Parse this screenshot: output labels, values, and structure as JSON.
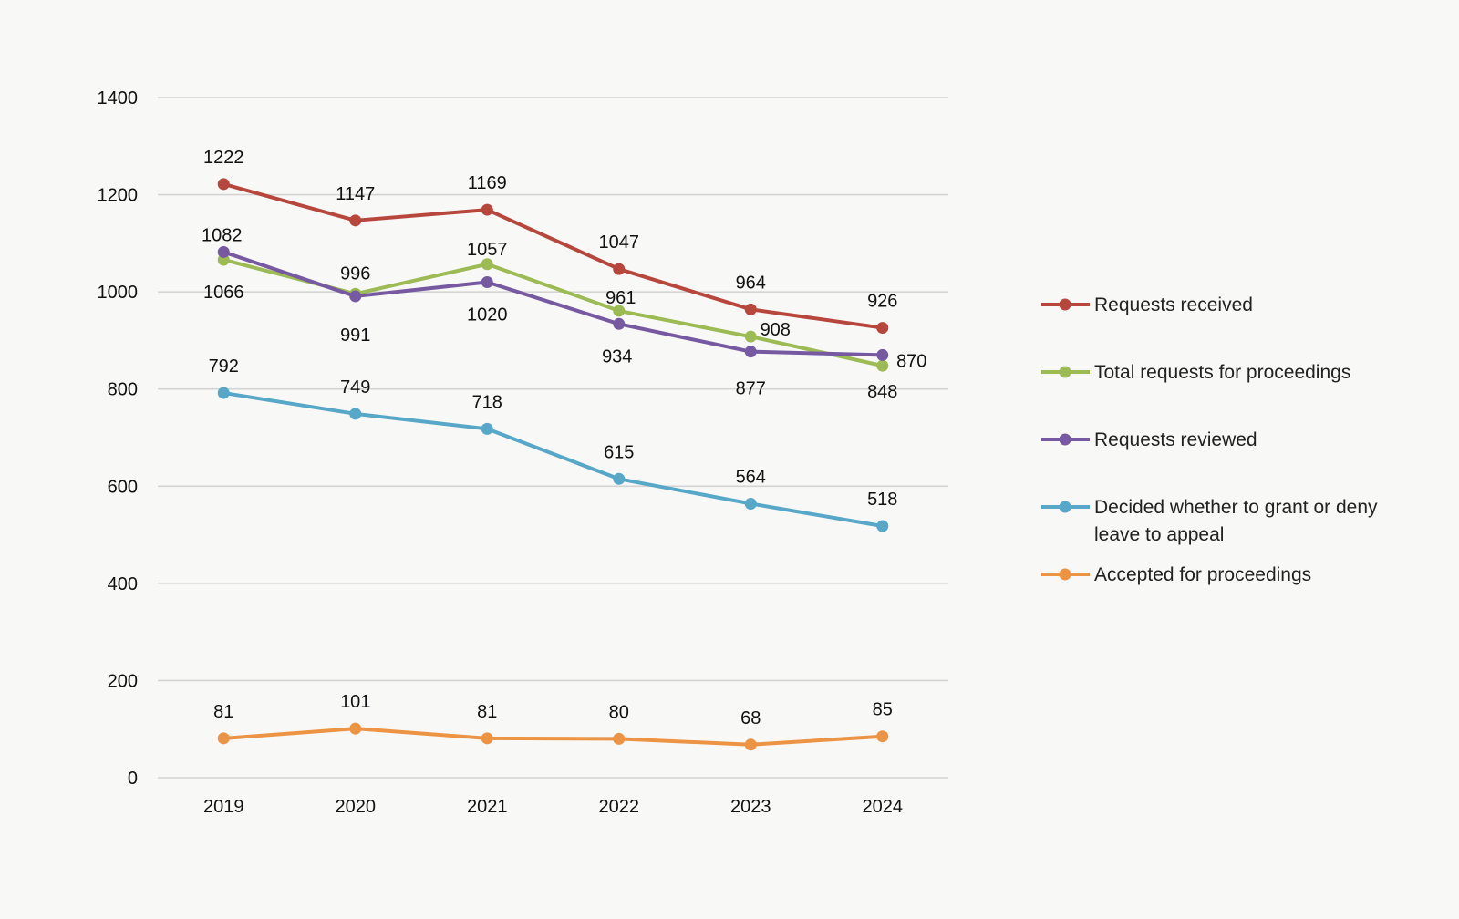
{
  "chart_data": {
    "type": "line",
    "title": "",
    "xlabel": "",
    "ylabel": "",
    "categories": [
      "2019",
      "2020",
      "2021",
      "2022",
      "2023",
      "2024"
    ],
    "ylim": [
      0,
      1400
    ],
    "yticks": [
      0,
      200,
      400,
      600,
      800,
      1000,
      1200,
      1400
    ],
    "grid": true,
    "legend_position": "right",
    "series": [
      {
        "name": "Requests received",
        "color": "#b7473d",
        "values": [
          1222,
          1147,
          1169,
          1047,
          964,
          926
        ]
      },
      {
        "name": "Total requests for proceedings",
        "color": "#9dbb55",
        "values": [
          1066,
          996,
          1057,
          961,
          908,
          848
        ]
      },
      {
        "name": "Requests reviewed",
        "color": "#7659a0",
        "values": [
          1082,
          991,
          1020,
          934,
          877,
          870
        ]
      },
      {
        "name": "Decided whether to grant or deny leave to appeal",
        "legend_lines": [
          "Decided whether to grant or deny",
          "leave to appeal"
        ],
        "color": "#57a7c8",
        "values": [
          792,
          749,
          718,
          615,
          564,
          518
        ]
      },
      {
        "name": "Accepted for proceedings",
        "color": "#ec9444",
        "values": [
          81,
          101,
          81,
          80,
          68,
          85
        ]
      }
    ]
  }
}
